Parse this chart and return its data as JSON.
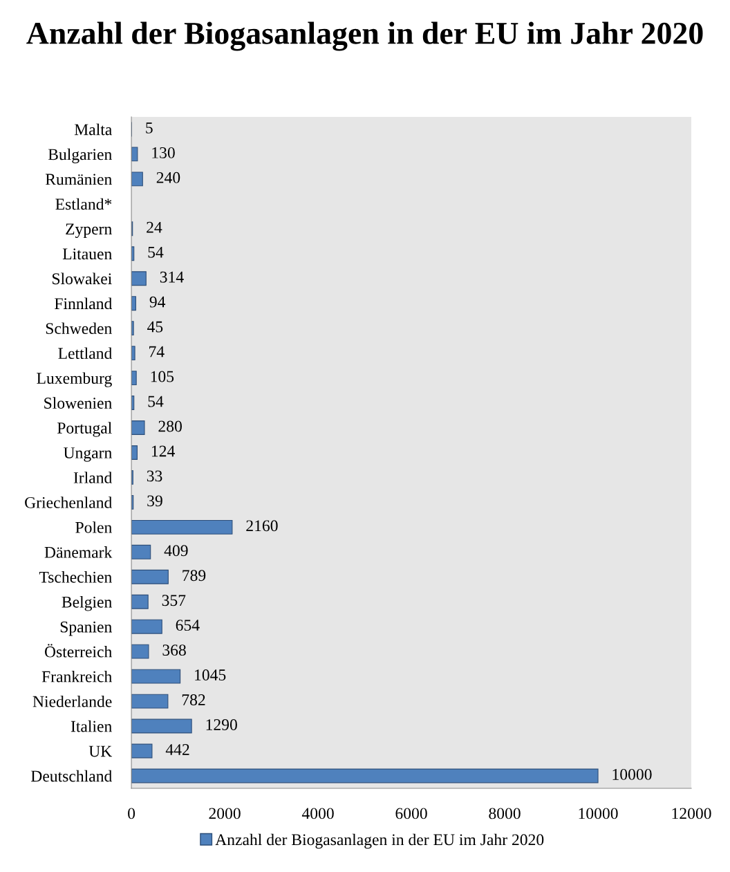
{
  "chart_data": {
    "type": "bar",
    "orientation": "horizontal",
    "title": "Anzahl der Biogasanlagen in der EU im Jahr 2020",
    "categories": [
      "Malta",
      "Bulgarien",
      "Rumänien",
      "Estland*",
      "Zypern",
      "Litauen",
      "Slowakei",
      "Finnland",
      "Schweden",
      "Lettland",
      "Luxemburg",
      "Slowenien",
      "Portugal",
      "Ungarn",
      "Irland",
      "Griechenland",
      "Polen",
      "Dänemark",
      "Tschechien",
      "Belgien",
      "Spanien",
      "Österreich",
      "Frankreich",
      "Niederlande",
      "Italien",
      "UK",
      "Deutschland"
    ],
    "series": [
      {
        "name": "Anzahl der Biogasanlagen in der EU im Jahr 2020",
        "color": "#4f81bd",
        "values": [
          5,
          130,
          240,
          null,
          24,
          54,
          314,
          94,
          45,
          74,
          105,
          54,
          280,
          124,
          33,
          39,
          2160,
          409,
          789,
          357,
          654,
          368,
          1045,
          782,
          1290,
          442,
          10000
        ]
      }
    ],
    "xlim": [
      0,
      12000
    ],
    "xticks": [
      0,
      2000,
      4000,
      6000,
      8000,
      10000,
      12000
    ],
    "data_labels": true,
    "legend": "bottom",
    "grid": false
  }
}
